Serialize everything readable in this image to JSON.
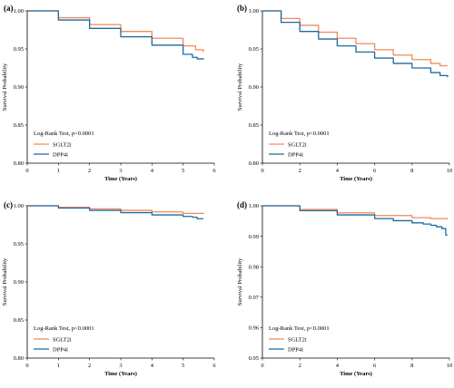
{
  "colors": {
    "sglt2i": "#f08a5d",
    "dpp4i": "#1f6aa0",
    "axis": "#000000"
  },
  "chart_data": [
    {
      "type": "line",
      "panel": "(a)",
      "xlabel": "Time (Years)",
      "ylabel": "Survival Probability",
      "xlim": [
        0,
        6
      ],
      "ylim": [
        0.8,
        1.0
      ],
      "xticks": [
        "0",
        "1",
        "2",
        "3",
        "4",
        "5",
        "6"
      ],
      "yticks": [
        "0.80",
        "0.85",
        "0.90",
        "0.95",
        "1.00"
      ],
      "annotation": "Log-Rank Test, p<0.0001",
      "series": [
        {
          "name": "SGLT2i",
          "x": [
            0,
            1,
            2,
            3,
            4,
            5,
            5.4,
            5.65
          ],
          "y": [
            1.0,
            0.991,
            0.982,
            0.973,
            0.964,
            0.954,
            0.949,
            0.946
          ]
        },
        {
          "name": "DPP4i",
          "x": [
            0,
            1,
            2,
            3,
            4,
            5,
            5.3,
            5.45,
            5.65
          ],
          "y": [
            1.0,
            0.988,
            0.977,
            0.966,
            0.955,
            0.943,
            0.939,
            0.937,
            0.936
          ]
        }
      ]
    },
    {
      "type": "line",
      "panel": "(b)",
      "xlabel": "Time (Years)",
      "ylabel": "Survival Probability",
      "xlim": [
        0,
        10
      ],
      "ylim": [
        0.8,
        1.0
      ],
      "xticks": [
        "0",
        "2",
        "4",
        "6",
        "8",
        "10"
      ],
      "yticks": [
        "0.80",
        "0.85",
        "0.90",
        "0.95",
        "1.00"
      ],
      "annotation": "Log-Rank Test, p<0.0001",
      "series": [
        {
          "name": "SGLT2i",
          "x": [
            0,
            1,
            2,
            3,
            4,
            5,
            6,
            7,
            8,
            9,
            9.5,
            9.9
          ],
          "y": [
            1.0,
            0.99,
            0.981,
            0.972,
            0.964,
            0.957,
            0.949,
            0.942,
            0.936,
            0.931,
            0.928,
            0.928
          ]
        },
        {
          "name": "DPP4i",
          "x": [
            0,
            1,
            2,
            3,
            4,
            5,
            6,
            7,
            8,
            9,
            9.5,
            9.9
          ],
          "y": [
            1.0,
            0.985,
            0.973,
            0.963,
            0.954,
            0.946,
            0.938,
            0.931,
            0.925,
            0.919,
            0.915,
            0.913
          ]
        }
      ]
    },
    {
      "type": "line",
      "panel": "(c)",
      "xlabel": "Time (Years)",
      "ylabel": "Survival Probability",
      "xlim": [
        0,
        6
      ],
      "ylim": [
        0.8,
        1.0
      ],
      "xticks": [
        "0",
        "1",
        "2",
        "3",
        "4",
        "5",
        "6"
      ],
      "yticks": [
        "0.80",
        "0.85",
        "0.90",
        "0.95",
        "1.00"
      ],
      "annotation": "Log-Rank Test, p<0.0001",
      "series": [
        {
          "name": "SGLT2i",
          "x": [
            0,
            1,
            2,
            3,
            4,
            5,
            5.65
          ],
          "y": [
            1.0,
            0.998,
            0.996,
            0.994,
            0.992,
            0.99,
            0.989
          ]
        },
        {
          "name": "DPP4i",
          "x": [
            0,
            1,
            2,
            3,
            4,
            5,
            5.3,
            5.45,
            5.65
          ],
          "y": [
            1.0,
            0.997,
            0.994,
            0.991,
            0.988,
            0.986,
            0.985,
            0.983,
            0.983
          ]
        }
      ]
    },
    {
      "type": "line",
      "panel": "(d)",
      "xlabel": "Time (Years)",
      "ylabel": "Survival Probability",
      "xlim": [
        0,
        10
      ],
      "ylim": [
        0.95,
        1.0
      ],
      "xticks": [
        "0",
        "2",
        "4",
        "6",
        "8",
        "10"
      ],
      "yticks": [
        "0.95",
        "0.96",
        "0.97",
        "0.98",
        "0.99",
        "1.00"
      ],
      "annotation": "Log-Rank Test, p<0.0001",
      "series": [
        {
          "name": "SGLT2i",
          "x": [
            0,
            2,
            4,
            6,
            8,
            9,
            9.9
          ],
          "y": [
            1.0,
            0.9988,
            0.9977,
            0.9968,
            0.9961,
            0.9958,
            0.9956
          ]
        },
        {
          "name": "DPP4i",
          "x": [
            0,
            2,
            4,
            6,
            7,
            8,
            8.6,
            9.0,
            9.3,
            9.6,
            9.8,
            9.9
          ],
          "y": [
            1.0,
            0.9984,
            0.997,
            0.9958,
            0.9951,
            0.9944,
            0.994,
            0.9936,
            0.9931,
            0.9925,
            0.9904,
            0.9904
          ]
        }
      ]
    }
  ]
}
